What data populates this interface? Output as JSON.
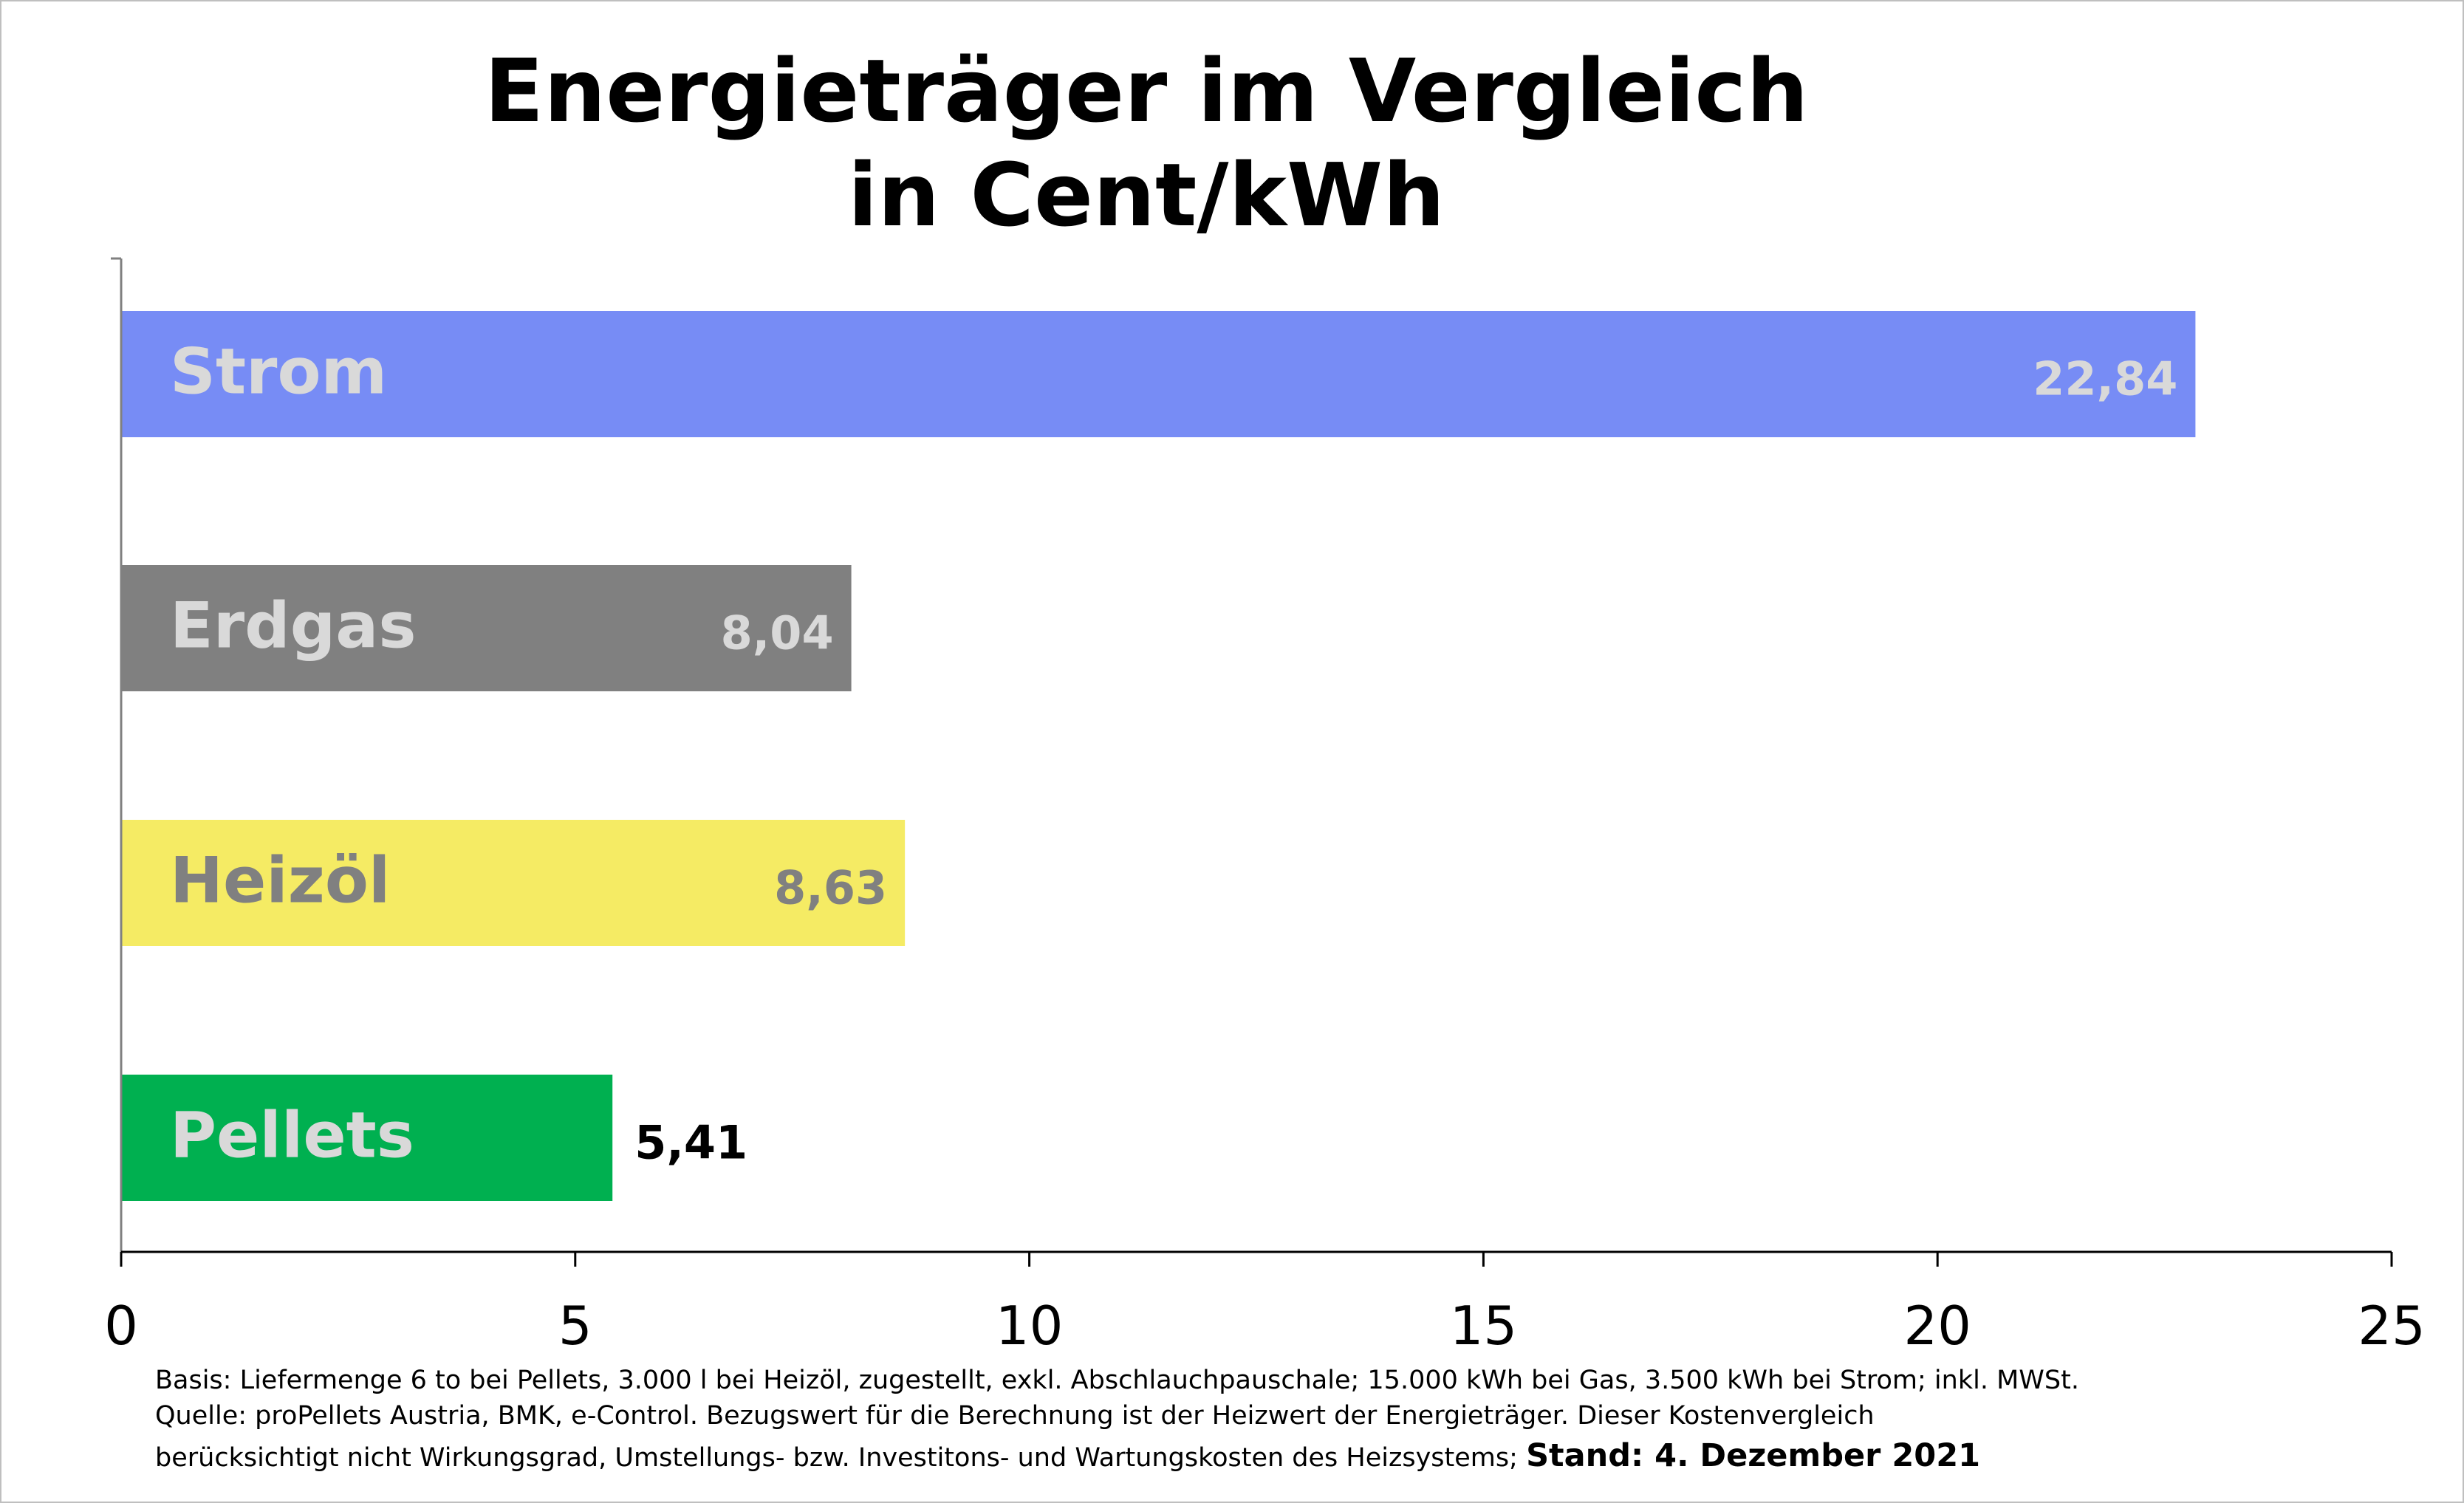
{
  "chart_data": {
    "type": "bar",
    "orientation": "horizontal",
    "title_lines": [
      "Energieträger im Vergleich",
      "in Cent/kWh"
    ],
    "categories": [
      "Strom",
      "Erdgas",
      "Heizöl",
      "Pellets"
    ],
    "values": [
      22.84,
      8.04,
      8.63,
      5.41
    ],
    "value_labels": [
      "22,84",
      "8,04",
      "8,63",
      "5,41"
    ],
    "colors": [
      "#778cf5",
      "#808080",
      "#f5eb64",
      "#00b050"
    ],
    "label_colors": [
      "#d9d9d9",
      "#d9d9d9",
      "#808080",
      "#d9d9d9"
    ],
    "value_label_colors": [
      "#d9d9d9",
      "#d9d9d9",
      "#808080",
      "#000000"
    ],
    "value_label_position": [
      "inside",
      "inside",
      "inside",
      "outside"
    ],
    "xlim": [
      0,
      25
    ],
    "x_ticks": [
      0,
      5,
      10,
      15,
      20,
      25
    ],
    "grid": false,
    "legend": "none"
  },
  "footnote": {
    "line1": "Basis: Liefermenge 6 to bei Pellets, 3.000 l bei Heizöl, zugestellt, exkl. Abschlauchpauschale; 15.000 kWh bei Gas, 3.500 kWh bei Strom; inkl. MWSt.",
    "line2": "Quelle: proPellets Austria, BMK, e-Control. Bezugswert für die Berechnung ist der Heizwert der Energieträger. Dieser Kostenvergleich",
    "line3": "berücksichtigt nicht Wirkungsgrad, Umstellungs- bzw. Investitons- und Wartungskosten des Heizsystems;",
    "stand": "Stand: 4. Dezember 2021"
  }
}
